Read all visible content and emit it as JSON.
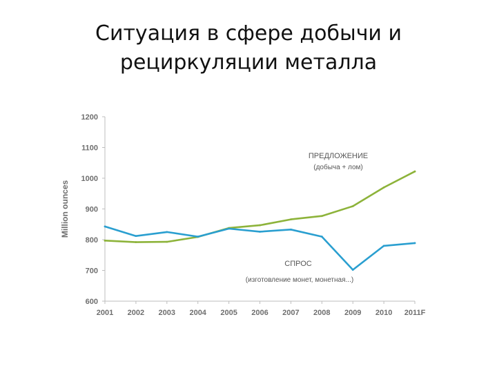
{
  "slide": {
    "title_line1": "Ситуация в сфере добычи и",
    "title_line2": "рециркуляции металла"
  },
  "chart_data": {
    "type": "line",
    "title": "",
    "xlabel": "",
    "ylabel": "Million ounces",
    "ylim": [
      600,
      1200
    ],
    "yticks": [
      600,
      700,
      800,
      900,
      1000,
      1100,
      1200
    ],
    "categories": [
      "2001",
      "2002",
      "2003",
      "2004",
      "2005",
      "2006",
      "2007",
      "2008",
      "2009",
      "2010",
      "2011F"
    ],
    "grid": false,
    "series": [
      {
        "name": "ПРЕДЛОЖЕНИЕ",
        "values": [
          797,
          792,
          793,
          809,
          838,
          847,
          866,
          877,
          909,
          970,
          1022
        ],
        "color": "#8db33a"
      },
      {
        "name": "СПРОС",
        "values": [
          843,
          812,
          825,
          810,
          836,
          826,
          833,
          810,
          702,
          780,
          789
        ],
        "color": "#2a9fd0"
      }
    ],
    "annotations": [
      {
        "text": "ПРЕДЛОЖЕНИЕ",
        "sub": "(добыча + лом)"
      },
      {
        "text": "СПРОС",
        "sub": "(изготовление монет, монетная...)"
      }
    ]
  }
}
